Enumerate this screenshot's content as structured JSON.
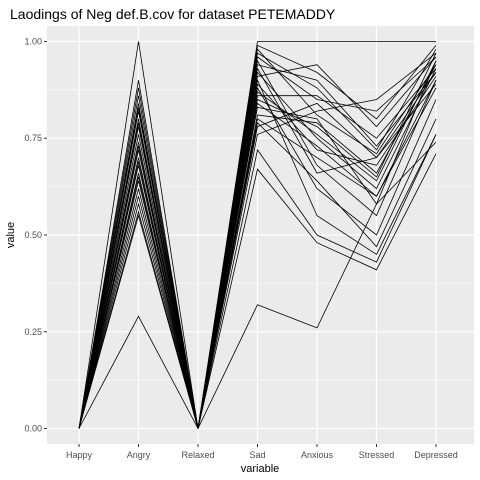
{
  "chart_data": {
    "type": "line",
    "title": "Laodings of Neg def.B.cov for dataset PETEMADDY",
    "xlabel": "variable",
    "ylabel": "value",
    "categories": [
      "Happy",
      "Angry",
      "Relaxed",
      "Sad",
      "Anxious",
      "Stressed",
      "Depressed"
    ],
    "ylim": [
      -0.04,
      1.04
    ],
    "yticks": [
      0.0,
      0.25,
      0.5,
      0.75,
      1.0
    ],
    "ytick_labels": [
      "0.00",
      "0.25",
      "0.50",
      "0.75",
      "1.00"
    ],
    "grid": true,
    "background": "#ebebeb",
    "line_color": "#000000",
    "series": [
      {
        "values": [
          0,
          1.0,
          0,
          1.0,
          1.0,
          1.0,
          1.0
        ]
      },
      {
        "values": [
          0,
          0.29,
          0,
          0.32,
          0.26,
          0.58,
          0.74
        ]
      },
      {
        "values": [
          0,
          0.55,
          0,
          0.67,
          0.48,
          0.41,
          0.71
        ]
      },
      {
        "values": [
          0,
          0.56,
          0,
          0.72,
          0.5,
          0.43,
          0.76
        ]
      },
      {
        "values": [
          0,
          0.58,
          0,
          0.9,
          0.55,
          0.45,
          0.76
        ]
      },
      {
        "values": [
          0,
          0.6,
          0,
          0.88,
          0.62,
          0.5,
          0.85
        ]
      },
      {
        "values": [
          0,
          0.62,
          0,
          0.95,
          0.68,
          0.55,
          0.9
        ]
      },
      {
        "values": [
          0,
          0.64,
          0,
          0.8,
          0.7,
          0.6,
          0.88
        ]
      },
      {
        "values": [
          0,
          0.66,
          0,
          0.92,
          0.75,
          0.62,
          0.93
        ]
      },
      {
        "values": [
          0,
          0.68,
          0,
          0.85,
          0.78,
          0.65,
          0.97
        ]
      },
      {
        "values": [
          0,
          0.7,
          0,
          0.83,
          0.8,
          0.58,
          0.95
        ]
      },
      {
        "values": [
          0,
          0.72,
          0,
          0.78,
          0.84,
          0.7,
          0.92
        ]
      },
      {
        "values": [
          0,
          0.74,
          0,
          0.97,
          0.88,
          0.72,
          0.98
        ]
      },
      {
        "values": [
          0,
          0.76,
          0,
          0.86,
          0.86,
          0.75,
          0.93
        ]
      },
      {
        "values": [
          0,
          0.78,
          0,
          0.99,
          0.92,
          0.8,
          0.99
        ]
      },
      {
        "values": [
          0,
          0.8,
          0,
          0.76,
          0.82,
          0.85,
          0.97
        ]
      },
      {
        "values": [
          0,
          0.82,
          0,
          0.94,
          0.9,
          0.73,
          0.92
        ]
      },
      {
        "values": [
          0,
          0.84,
          0,
          0.89,
          0.72,
          0.68,
          0.91
        ]
      },
      {
        "values": [
          0,
          0.86,
          0,
          0.91,
          0.94,
          0.78,
          0.96
        ]
      },
      {
        "values": [
          0,
          0.88,
          0,
          0.87,
          0.76,
          0.64,
          0.95
        ]
      },
      {
        "values": [
          0,
          0.9,
          0,
          0.93,
          0.66,
          0.7,
          0.89
        ]
      },
      {
        "values": [
          0,
          0.73,
          0,
          0.81,
          0.79,
          0.66,
          0.94
        ]
      },
      {
        "values": [
          0,
          0.69,
          0,
          0.84,
          0.73,
          0.6,
          0.9
        ]
      },
      {
        "values": [
          0,
          0.79,
          0,
          0.96,
          0.85,
          0.82,
          0.96
        ]
      },
      {
        "values": [
          0,
          0.65,
          0,
          0.79,
          0.64,
          0.47,
          0.8
        ]
      },
      {
        "values": [
          0,
          0.83,
          0,
          0.98,
          0.81,
          0.71,
          0.94
        ]
      }
    ]
  }
}
